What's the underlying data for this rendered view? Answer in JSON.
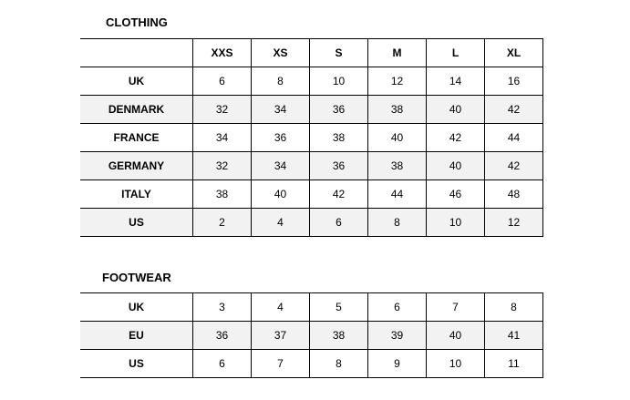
{
  "clothing": {
    "title": "CLOTHING",
    "headers": [
      "",
      "XXS",
      "XS",
      "S",
      "M",
      "L",
      "XL"
    ],
    "rows": [
      {
        "label": "UK",
        "values": [
          "6",
          "8",
          "10",
          "12",
          "14",
          "16"
        ]
      },
      {
        "label": "DENMARK",
        "values": [
          "32",
          "34",
          "36",
          "38",
          "40",
          "42"
        ]
      },
      {
        "label": "FRANCE",
        "values": [
          "34",
          "36",
          "38",
          "40",
          "42",
          "44"
        ]
      },
      {
        "label": "GERMANY",
        "values": [
          "32",
          "34",
          "36",
          "38",
          "40",
          "42"
        ]
      },
      {
        "label": "ITALY",
        "values": [
          "38",
          "40",
          "42",
          "44",
          "46",
          "48"
        ]
      },
      {
        "label": "US",
        "values": [
          "2",
          "4",
          "6",
          "8",
          "10",
          "12"
        ]
      }
    ]
  },
  "footwear": {
    "title": "FOOTWEAR",
    "rows": [
      {
        "label": "UK",
        "values": [
          "3",
          "4",
          "5",
          "6",
          "7",
          "8"
        ]
      },
      {
        "label": "EU",
        "values": [
          "36",
          "37",
          "38",
          "39",
          "40",
          "41"
        ]
      },
      {
        "label": "US",
        "values": [
          "6",
          "7",
          "8",
          "9",
          "10",
          "11"
        ]
      }
    ]
  },
  "colors": {
    "alt_row": "#f2f2f2",
    "border": "#000000"
  }
}
